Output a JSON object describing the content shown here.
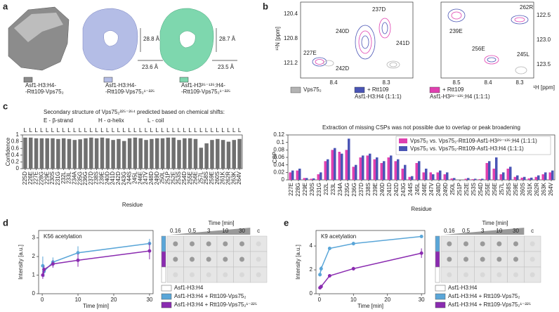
{
  "panels": {
    "a": {
      "label": "a",
      "structures": [
        {
          "name_lines": [
            "Asf1-H3:H4-",
            "-Rtt109-Vps75₂"
          ],
          "color": "#8c8c8c"
        },
        {
          "name_lines": [
            "Asf1-H3:H4-",
            "-Rtt109-Vps75₂¹⁻²²⁵"
          ],
          "color": "#b4bde6",
          "dims": [
            "28.8 Å",
            "23.6 Å"
          ]
        },
        {
          "name_lines": [
            "Asf1-H3³⁵⁻¹³⁵:H4-",
            "-Rtt109-Vps75₂¹⁻²²⁵"
          ],
          "color": "#7ed7ae",
          "dims": [
            "28.7 Å",
            "23.5 Å"
          ]
        }
      ]
    },
    "b": {
      "label": "b",
      "y_axis_label": "¹⁵N [ppm]",
      "x_axis_label": "¹H [ppm]",
      "left": {
        "yticks": [
          "120.4",
          "120.8",
          "121.2"
        ],
        "xticks": [
          "8.4",
          "8.3"
        ],
        "peaks": [
          "227E",
          "237D",
          "240D",
          "241D",
          "242D"
        ]
      },
      "right": {
        "yticks": [
          "122.5",
          "123.0",
          "123.5"
        ],
        "xticks": [
          "8.5",
          "8.4",
          "8.3"
        ],
        "peaks": [
          "239E",
          "262R",
          "256E",
          "245L"
        ]
      },
      "legend": [
        {
          "name_lines": [
            "Vps75₂"
          ],
          "color": "#b3b3b3"
        },
        {
          "name_lines": [
            "+ Rtt109",
            "Asf1-H3:H4 (1:1:1)"
          ],
          "color": "#4a55b5"
        },
        {
          "name_lines": [
            "+ Rtt109",
            "Asf1-H3²⁹⁻¹³⁵:H4 (1:1:1)"
          ],
          "color": "#e040b0"
        }
      ]
    },
    "c": {
      "label": "c",
      "heading": "Secondary structure of Vps75₂²²⁵⁻²⁶⁴ predicted based on chemical shifts:",
      "legend": [
        "E - β-strand",
        "H - α-helix",
        "L - coil"
      ],
      "legend_colors": [
        "#e0202a",
        "#3a3ac8",
        "#8a8a8a"
      ]
    },
    "d": {
      "label": "d",
      "blot": {
        "time_label": "Time [min]",
        "times": [
          "0.16",
          "0.5",
          "3",
          "10",
          "30",
          "c"
        ],
        "control": "Asf1-H3:H4",
        "control_color": "#ffffff"
      }
    },
    "e": {
      "label": "e",
      "blot": {
        "time_label": "Time [min]",
        "times": [
          "0.16",
          "0.5",
          "3",
          "10",
          "30",
          "c"
        ],
        "control": "Asf1-H3:H4",
        "control_color": "#ffffff"
      }
    }
  },
  "chart_data": [
    {
      "type": "bar",
      "ylabel": "Confidence",
      "xlabel": "Residue",
      "categories": [
        "225D",
        "226E",
        "227E",
        "228G",
        "229E",
        "230S",
        "231G",
        "232L",
        "233L",
        "234A",
        "235G",
        "236G",
        "237D",
        "238S",
        "239E",
        "240D",
        "241D",
        "242D",
        "243G",
        "244S",
        "245L",
        "246E",
        "247V",
        "248D",
        "249D",
        "250L",
        "251P",
        "252E",
        "253S",
        "254D",
        "255E",
        "256E",
        "257L",
        "258S",
        "259E",
        "260S",
        "261K",
        "262R",
        "263K",
        "264V"
      ],
      "values": [
        0.92,
        0.92,
        0.9,
        0.9,
        0.9,
        0.9,
        0.88,
        0.9,
        0.88,
        0.85,
        0.87,
        0.9,
        0.92,
        0.9,
        0.92,
        0.9,
        0.85,
        0.88,
        0.82,
        0.9,
        0.92,
        0.9,
        0.85,
        0.88,
        0.9,
        0.9,
        0.92,
        0.92,
        0.85,
        0.9,
        0.9,
        0.88,
        0.62,
        0.75,
        0.85,
        0.88,
        0.85,
        0.8,
        0.85,
        0.88
      ],
      "secondary_structure": [
        "L",
        "L",
        "L",
        "L",
        "L",
        "L",
        "L",
        "L",
        "L",
        "L",
        "L",
        "L",
        "L",
        "L",
        "L",
        "L",
        "L",
        "L",
        "L",
        "L",
        "L",
        "L",
        "L",
        "L",
        "L",
        "L",
        "L",
        "L",
        "L",
        "L",
        "L",
        "L",
        "L",
        "L",
        "L",
        "L",
        "L",
        "L",
        "L",
        "L"
      ],
      "color": "#707070",
      "ylim": [
        0,
        1
      ],
      "yticks": [
        0,
        0.2,
        0.4,
        0.6,
        0.8,
        1
      ]
    },
    {
      "type": "bar",
      "title": "Extraction of missing CSPs was not possible due to overlap or peak broadening",
      "ylabel": "CSP",
      "xlabel": "Residue",
      "categories": [
        "227E",
        "228G",
        "229E",
        "230S",
        "231G",
        "232L",
        "233L",
        "234A",
        "235G",
        "236G",
        "237D",
        "238S",
        "239E",
        "240D",
        "241D",
        "242D",
        "243G",
        "244S",
        "245L",
        "246E",
        "247V",
        "248D",
        "249D",
        "250L",
        "251P",
        "252E",
        "253S",
        "254D",
        "255E",
        "256E",
        "257L",
        "258S",
        "259E",
        "260S",
        "261K",
        "262R",
        "263K",
        "264V"
      ],
      "series": [
        {
          "name": "Vps75₂ vs. Vps75₂-Rtt109-Asf1-H3²⁹⁻¹³⁵:H4 (1:1:1)",
          "color": "#e040b0",
          "values": [
            0.02,
            0.025,
            0.005,
            0.003,
            0.015,
            0.05,
            0.08,
            0.075,
            0.08,
            0.035,
            0.06,
            0.065,
            0.055,
            0.045,
            0.06,
            0.05,
            0.03,
            0.008,
            0.045,
            0.02,
            0.02,
            0.02,
            0.015,
            0.004,
            0,
            0.003,
            0.002,
            0.002,
            0.045,
            0.03,
            0.015,
            0.03,
            0.008,
            0.006,
            0.004,
            0.008,
            0.015,
            0.02
          ]
        },
        {
          "name": "Vps75₂ vs. Vps75₂-Rtt109-Asf1-H3:H4 (1:1:1)",
          "color": "#4a55b5",
          "values": [
            0.025,
            0.03,
            0.005,
            0.004,
            0.02,
            0.055,
            0.085,
            0.07,
            0.11,
            0.04,
            0.065,
            0.07,
            0.06,
            0.05,
            0.065,
            0.055,
            0.04,
            0.01,
            0.05,
            0.03,
            0.015,
            0.025,
            0.02,
            0.005,
            0,
            0.005,
            0.003,
            0.003,
            0.05,
            0.06,
            0.02,
            0.035,
            0.012,
            0.008,
            0.006,
            0.012,
            0.02,
            0.025
          ]
        }
      ],
      "ylim": [
        0,
        0.12
      ],
      "yticks": [
        0,
        0.02,
        0.04,
        0.06,
        0.08,
        0.1,
        0.12
      ]
    },
    {
      "type": "line",
      "title": "K56 acetylation",
      "xlabel": "Time [min]",
      "ylabel": "Intensity [a.u.]",
      "x": [
        0.16,
        0.5,
        3,
        10,
        30
      ],
      "xlim": [
        -1,
        31
      ],
      "xticks": [
        0,
        10,
        20,
        30
      ],
      "ylim": [
        0,
        3.4
      ],
      "yticks": [
        0,
        1,
        2,
        3
      ],
      "series": [
        {
          "name": "Asf1-H3:H4 + Rtt109-Vps75₂",
          "color": "#5aa6d8",
          "values": [
            1.5,
            1.2,
            1.7,
            2.2,
            2.7
          ],
          "errors": [
            0.5,
            0.3,
            0.25,
            0.35,
            0.25
          ]
        },
        {
          "name": "Asf1-H3:H4 + Rtt109-Vps75₂¹⁻²²⁵",
          "color": "#8a2bb0",
          "values": [
            1.0,
            1.3,
            1.6,
            1.8,
            2.3
          ],
          "errors": [
            0.2,
            0.2,
            0.2,
            0.35,
            0.45
          ]
        }
      ]
    },
    {
      "type": "line",
      "title": "K9 acetylation",
      "xlabel": "Time [min]",
      "ylabel": "Intensity [a.u.]",
      "x": [
        0.16,
        0.5,
        3,
        10,
        30
      ],
      "xlim": [
        -1,
        31
      ],
      "xticks": [
        0,
        10,
        20,
        30
      ],
      "ylim": [
        0,
        5.3
      ],
      "yticks": [
        0,
        2,
        4
      ],
      "series": [
        {
          "name": "Asf1-H3:H4 + Rtt109-Vps75₂",
          "color": "#5aa6d8",
          "values": [
            1.6,
            2.1,
            3.8,
            4.2,
            4.8
          ],
          "errors": [
            0.15,
            0.2,
            0.1,
            0.15,
            0.1
          ]
        },
        {
          "name": "Asf1-H3:H4 + Rtt109-Vps75₂¹⁻²²⁵",
          "color": "#8a2bb0",
          "values": [
            0.5,
            0.6,
            1.5,
            2.1,
            3.4
          ],
          "errors": [
            0.1,
            0.1,
            0.1,
            0.15,
            0.4
          ]
        }
      ]
    }
  ]
}
